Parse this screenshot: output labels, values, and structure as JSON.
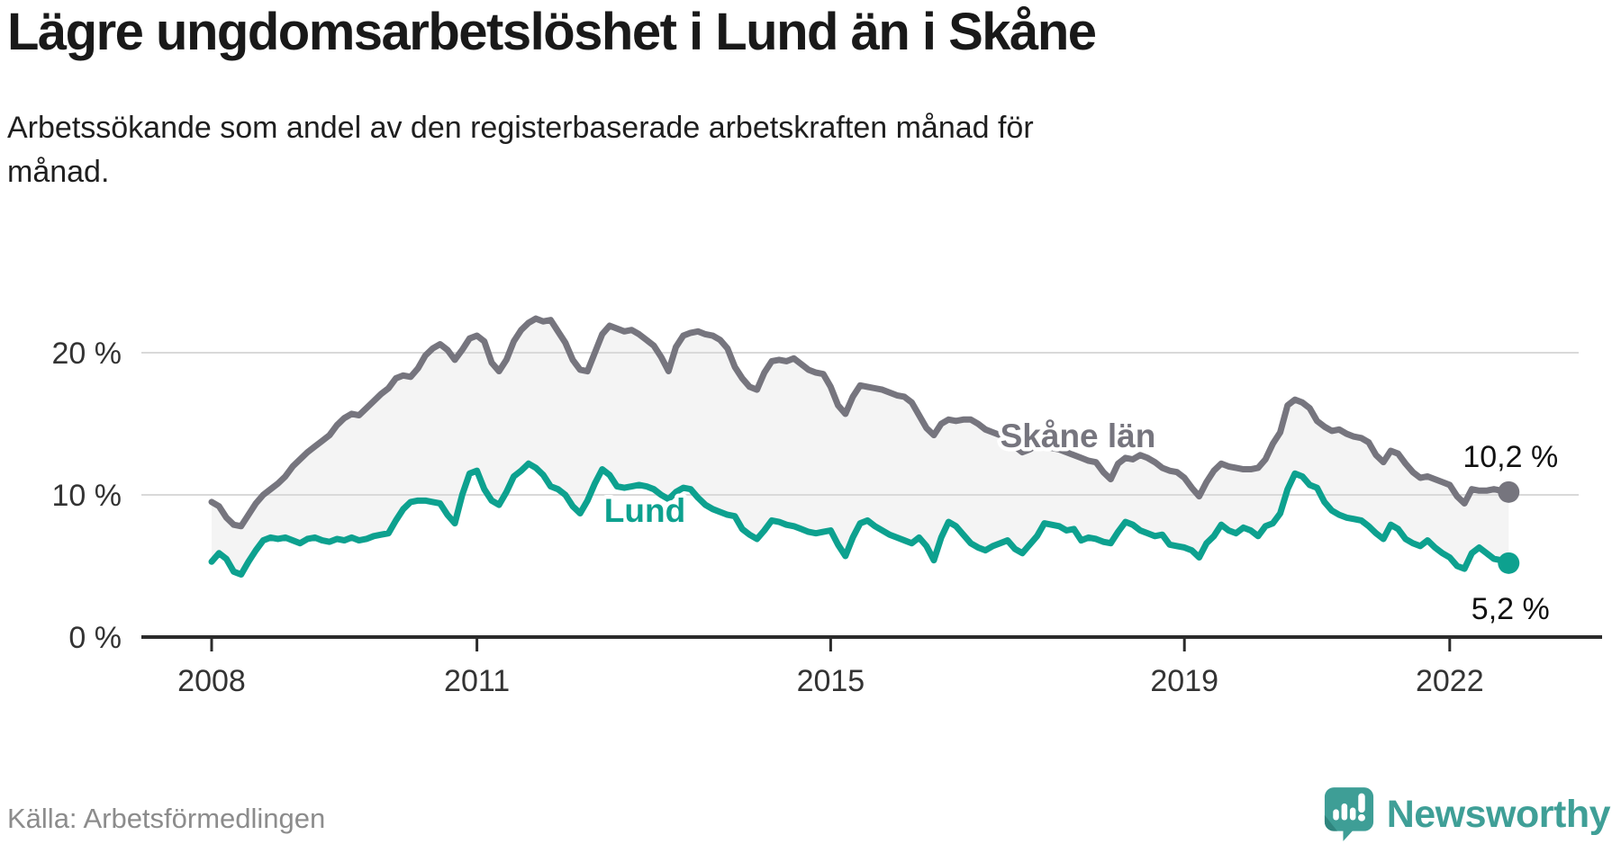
{
  "header": {
    "title": "Lägre ungdomsarbetslöshet i Lund än i Skåne",
    "subtitle": "Arbetssökande som andel av den registerbaserade arbetskraften månad för\nmånad."
  },
  "footer": {
    "source": "Källa: Arbetsförmedlingen",
    "logo_text": "Newsworthy",
    "logo_color": "#3f9f97"
  },
  "chart_data": {
    "type": "line",
    "title": "Lägre ungdomsarbetslöshet i Lund än i Skåne",
    "subtitle": "Arbetssökande som andel av den registerbaserade arbetskraften månad för månad.",
    "unit": "%",
    "x_start_year": 2008,
    "x_start_month": 1,
    "x_frequency": "monthly",
    "ylim": [
      0,
      24
    ],
    "grid": "horizontal",
    "legend_position": "inline",
    "area_fill_between_series": "#f4f4f4",
    "axis_color": "#2b2b2b",
    "gridline_color": "#d9d9d9",
    "x_ticks": [
      {
        "label": "2008",
        "year": 2008
      },
      {
        "label": "2011",
        "year": 2011
      },
      {
        "label": "2015",
        "year": 2015
      },
      {
        "label": "2019",
        "year": 2019
      },
      {
        "label": "2022",
        "year": 2022
      }
    ],
    "y_ticks": [
      {
        "label": "0 %",
        "value": 0
      },
      {
        "label": "10 %",
        "value": 10
      },
      {
        "label": "20 %",
        "value": 20
      }
    ],
    "series": [
      {
        "name": "Skåne län",
        "color": "#76757E",
        "end_label": "10,2 %",
        "end_value": 10.2,
        "values": [
          9.5,
          9.2,
          8.4,
          7.9,
          7.8,
          8.6,
          9.4,
          10.0,
          10.4,
          10.8,
          11.3,
          12.0,
          12.5,
          13.0,
          13.4,
          13.8,
          14.2,
          14.9,
          15.4,
          15.7,
          15.6,
          16.1,
          16.6,
          17.1,
          17.5,
          18.2,
          18.4,
          18.3,
          18.9,
          19.8,
          20.3,
          20.6,
          20.2,
          19.5,
          20.2,
          21.0,
          21.2,
          20.8,
          19.3,
          18.7,
          19.5,
          20.8,
          21.6,
          22.1,
          22.4,
          22.2,
          22.3,
          21.5,
          20.7,
          19.5,
          18.8,
          18.7,
          20.0,
          21.3,
          21.9,
          21.7,
          21.5,
          21.6,
          21.3,
          20.9,
          20.5,
          19.7,
          18.7,
          20.4,
          21.2,
          21.4,
          21.5,
          21.3,
          21.2,
          20.9,
          20.3,
          19.0,
          18.2,
          17.6,
          17.4,
          18.6,
          19.4,
          19.5,
          19.4,
          19.6,
          19.2,
          18.8,
          18.6,
          18.5,
          17.6,
          16.3,
          15.7,
          16.9,
          17.7,
          17.6,
          17.5,
          17.4,
          17.2,
          17.0,
          16.9,
          16.5,
          15.6,
          14.7,
          14.2,
          15.0,
          15.3,
          15.2,
          15.3,
          15.3,
          15.0,
          14.6,
          14.4,
          14.2,
          13.8,
          13.4,
          13.0,
          13.2,
          13.5,
          13.4,
          13.3,
          13.2,
          13.0,
          12.8,
          12.6,
          12.4,
          12.3,
          11.6,
          11.1,
          12.2,
          12.6,
          12.5,
          12.8,
          12.6,
          12.3,
          11.9,
          11.7,
          11.6,
          11.2,
          10.5,
          9.9,
          10.9,
          11.7,
          12.2,
          12.0,
          11.9,
          11.8,
          11.8,
          11.9,
          12.5,
          13.6,
          14.4,
          16.3,
          16.7,
          16.5,
          16.1,
          15.2,
          14.8,
          14.5,
          14.6,
          14.3,
          14.1,
          14.0,
          13.7,
          12.8,
          12.3,
          13.1,
          12.9,
          12.2,
          11.6,
          11.2,
          11.3,
          11.1,
          10.9,
          10.7,
          9.9,
          9.4,
          10.4,
          10.3,
          10.3,
          10.4,
          10.3,
          10.2
        ]
      },
      {
        "name": "Lund",
        "color": "#0DA18F",
        "end_label": "5,2 %",
        "end_value": 5.2,
        "values": [
          5.3,
          5.9,
          5.5,
          4.6,
          4.4,
          5.3,
          6.1,
          6.8,
          7.0,
          6.9,
          7.0,
          6.8,
          6.6,
          6.9,
          7.0,
          6.8,
          6.7,
          6.9,
          6.8,
          7.0,
          6.8,
          6.9,
          7.1,
          7.2,
          7.3,
          8.2,
          9.0,
          9.5,
          9.6,
          9.6,
          9.5,
          9.4,
          8.6,
          8.0,
          10.0,
          11.5,
          11.7,
          10.4,
          9.6,
          9.3,
          10.2,
          11.3,
          11.7,
          12.2,
          11.9,
          11.4,
          10.6,
          10.4,
          10.0,
          9.2,
          8.7,
          9.6,
          10.8,
          11.8,
          11.4,
          10.6,
          10.5,
          10.6,
          10.7,
          10.6,
          10.4,
          10.0,
          9.7,
          10.2,
          10.5,
          10.4,
          9.8,
          9.3,
          9.0,
          8.8,
          8.6,
          8.5,
          7.6,
          7.2,
          6.9,
          7.5,
          8.2,
          8.1,
          7.9,
          7.8,
          7.6,
          7.4,
          7.3,
          7.4,
          7.5,
          6.5,
          5.7,
          7.0,
          8.0,
          8.2,
          7.8,
          7.5,
          7.2,
          7.0,
          6.8,
          6.6,
          7.0,
          6.4,
          5.4,
          7.0,
          8.1,
          7.8,
          7.2,
          6.6,
          6.3,
          6.1,
          6.4,
          6.6,
          6.8,
          6.2,
          5.9,
          6.5,
          7.1,
          8.0,
          7.9,
          7.8,
          7.5,
          7.6,
          6.8,
          7.0,
          6.9,
          6.7,
          6.6,
          7.4,
          8.1,
          7.9,
          7.5,
          7.3,
          7.1,
          7.2,
          6.5,
          6.4,
          6.3,
          6.1,
          5.6,
          6.6,
          7.1,
          7.9,
          7.5,
          7.3,
          7.7,
          7.5,
          7.1,
          7.8,
          8.0,
          8.7,
          10.4,
          11.5,
          11.3,
          10.7,
          10.5,
          9.5,
          8.9,
          8.6,
          8.4,
          8.3,
          8.2,
          7.8,
          7.3,
          6.9,
          7.9,
          7.6,
          6.9,
          6.6,
          6.4,
          6.8,
          6.3,
          5.9,
          5.6,
          5.0,
          4.8,
          5.9,
          6.3,
          5.9,
          5.5,
          5.4,
          5.2
        ]
      }
    ]
  }
}
